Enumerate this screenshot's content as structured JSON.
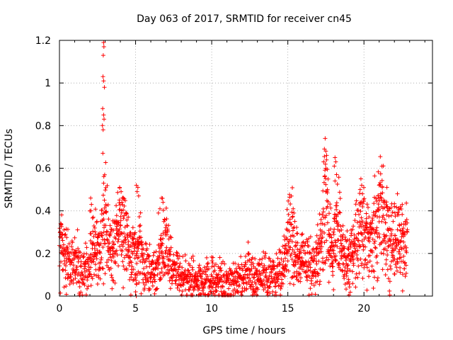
{
  "chart_data": {
    "type": "scatter",
    "title": "Day 063 of 2017, SRMTID for receiver cn45",
    "xlabel": "GPS time / hours",
    "ylabel": "SRMTID / TECUs",
    "xlim": [
      0,
      24.5
    ],
    "ylim": [
      0,
      1.2
    ],
    "x_ticks": [
      0,
      5,
      10,
      15,
      20
    ],
    "x_tick_labels": [
      "0",
      "5",
      "10",
      "15",
      "20"
    ],
    "y_ticks": [
      0,
      0.2,
      0.4,
      0.6,
      0.8,
      1.0,
      1.2
    ],
    "y_tick_labels": [
      "0",
      "0.2",
      "0.4",
      "0.6",
      "0.8",
      "1",
      "1.2"
    ],
    "grid": true,
    "marker": "+",
    "color": "#ff0000",
    "trend": [
      [
        0.0,
        0.24
      ],
      [
        0.2,
        0.21
      ],
      [
        0.5,
        0.15
      ],
      [
        0.8,
        0.14
      ],
      [
        1.0,
        0.16
      ],
      [
        1.3,
        0.13
      ],
      [
        1.6,
        0.11
      ],
      [
        1.9,
        0.13
      ],
      [
        2.1,
        0.2
      ],
      [
        2.3,
        0.22
      ],
      [
        2.6,
        0.2
      ],
      [
        2.8,
        0.28
      ],
      [
        3.0,
        0.33
      ],
      [
        3.2,
        0.22
      ],
      [
        3.5,
        0.18
      ],
      [
        3.8,
        0.28
      ],
      [
        4.1,
        0.3
      ],
      [
        4.4,
        0.22
      ],
      [
        4.7,
        0.18
      ],
      [
        5.0,
        0.16
      ],
      [
        5.2,
        0.22
      ],
      [
        5.5,
        0.14
      ],
      [
        5.8,
        0.13
      ],
      [
        6.1,
        0.12
      ],
      [
        6.4,
        0.12
      ],
      [
        6.7,
        0.2
      ],
      [
        7.0,
        0.24
      ],
      [
        7.3,
        0.14
      ],
      [
        7.6,
        0.12
      ],
      [
        8.0,
        0.09
      ],
      [
        8.5,
        0.08
      ],
      [
        9.0,
        0.07
      ],
      [
        9.5,
        0.07
      ],
      [
        10.0,
        0.08
      ],
      [
        10.5,
        0.07
      ],
      [
        11.0,
        0.06
      ],
      [
        11.5,
        0.08
      ],
      [
        12.0,
        0.09
      ],
      [
        12.5,
        0.09
      ],
      [
        13.0,
        0.09
      ],
      [
        13.5,
        0.09
      ],
      [
        14.0,
        0.09
      ],
      [
        14.5,
        0.11
      ],
      [
        14.8,
        0.16
      ],
      [
        15.0,
        0.24
      ],
      [
        15.2,
        0.3
      ],
      [
        15.4,
        0.18
      ],
      [
        15.8,
        0.16
      ],
      [
        16.2,
        0.14
      ],
      [
        16.6,
        0.13
      ],
      [
        17.0,
        0.18
      ],
      [
        17.3,
        0.26
      ],
      [
        17.5,
        0.42
      ],
      [
        17.7,
        0.24
      ],
      [
        18.0,
        0.2
      ],
      [
        18.3,
        0.3
      ],
      [
        18.6,
        0.18
      ],
      [
        19.0,
        0.15
      ],
      [
        19.3,
        0.2
      ],
      [
        19.6,
        0.26
      ],
      [
        19.9,
        0.3
      ],
      [
        20.2,
        0.25
      ],
      [
        20.5,
        0.28
      ],
      [
        20.8,
        0.34
      ],
      [
        21.1,
        0.35
      ],
      [
        21.4,
        0.3
      ],
      [
        21.7,
        0.26
      ],
      [
        22.0,
        0.24
      ],
      [
        22.3,
        0.26
      ],
      [
        22.6,
        0.22
      ],
      [
        22.8,
        0.24
      ]
    ],
    "spikes": [
      [
        2.9,
        1.19
      ],
      [
        2.92,
        1.17
      ],
      [
        2.88,
        1.13
      ],
      [
        2.86,
        1.03
      ],
      [
        2.9,
        1.01
      ],
      [
        2.95,
        0.98
      ],
      [
        2.84,
        0.88
      ],
      [
        2.9,
        0.85
      ],
      [
        2.93,
        0.83
      ],
      [
        2.82,
        0.8
      ],
      [
        2.87,
        0.78
      ],
      [
        2.85,
        0.67
      ],
      [
        2.9,
        0.53
      ],
      [
        2.95,
        0.45
      ],
      [
        3.05,
        0.43
      ],
      [
        17.45,
        0.74
      ],
      [
        17.4,
        0.69
      ],
      [
        17.5,
        0.68
      ],
      [
        17.55,
        0.66
      ],
      [
        17.35,
        0.63
      ],
      [
        17.5,
        0.6
      ],
      [
        17.42,
        0.56
      ],
      [
        17.6,
        0.5
      ],
      [
        18.1,
        0.65
      ],
      [
        18.15,
        0.63
      ],
      [
        18.05,
        0.61
      ],
      [
        18.2,
        0.57
      ],
      [
        18.1,
        0.54
      ],
      [
        19.8,
        0.55
      ],
      [
        19.85,
        0.52
      ],
      [
        19.75,
        0.5
      ],
      [
        19.9,
        0.48
      ],
      [
        21.0,
        0.52
      ],
      [
        21.2,
        0.51
      ],
      [
        21.1,
        0.48
      ],
      [
        20.95,
        0.46
      ],
      [
        21.3,
        0.45
      ],
      [
        22.2,
        0.48
      ],
      [
        22.0,
        0.42
      ],
      [
        5.05,
        0.52
      ],
      [
        5.15,
        0.51
      ],
      [
        5.1,
        0.49
      ],
      [
        5.2,
        0.47
      ],
      [
        3.95,
        0.51
      ],
      [
        4.05,
        0.49
      ],
      [
        4.2,
        0.46
      ],
      [
        4.1,
        0.44
      ],
      [
        6.7,
        0.46
      ],
      [
        6.8,
        0.44
      ],
      [
        6.6,
        0.41
      ],
      [
        6.5,
        0.39
      ],
      [
        15.35,
        0.41
      ],
      [
        15.4,
        0.39
      ],
      [
        15.3,
        0.37
      ],
      [
        2.05,
        0.46
      ],
      [
        2.1,
        0.43
      ],
      [
        2.0,
        0.4
      ],
      [
        5.0,
        0.02
      ],
      [
        5.05,
        0.0
      ],
      [
        18.0,
        0.03
      ]
    ]
  }
}
